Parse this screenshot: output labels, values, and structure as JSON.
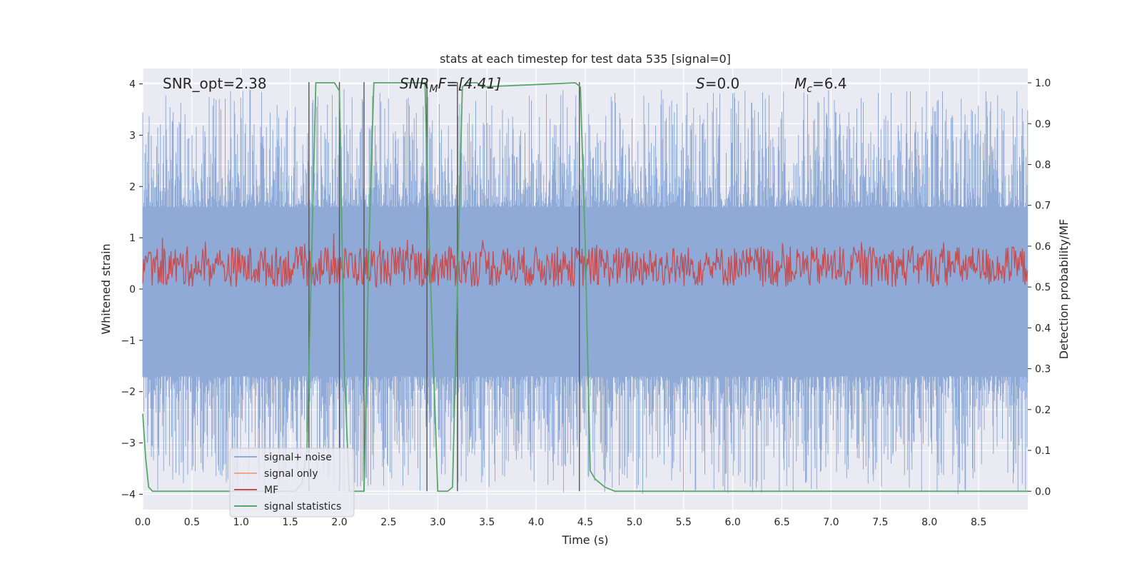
{
  "chart_data": {
    "type": "line",
    "title": "stats at each timestep for test data 535 [signal=0]",
    "xlabel": "Time (s)",
    "ylabel_left": "Whitened strain",
    "ylabel_right": "Detection probability/MF",
    "xlim": [
      0.0,
      9.0
    ],
    "ylim_left": [
      -4.3,
      4.3
    ],
    "ylim_right": [
      -0.045,
      1.035
    ],
    "x_ticks": [
      "0.0",
      "0.5",
      "1.0",
      "1.5",
      "2.0",
      "2.5",
      "3.0",
      "3.5",
      "4.0",
      "4.5",
      "5.0",
      "5.5",
      "6.0",
      "6.5",
      "7.0",
      "7.5",
      "8.0",
      "8.5"
    ],
    "y_ticks_left": [
      "−4",
      "−3",
      "−2",
      "−1",
      "0",
      "1",
      "2",
      "3",
      "4"
    ],
    "y_ticks_right": [
      "0.0",
      "0.1",
      "0.2",
      "0.3",
      "0.4",
      "0.5",
      "0.6",
      "0.7",
      "0.8",
      "0.9",
      "1.0"
    ],
    "grid": true,
    "legend_position": "lower-left",
    "annotations": {
      "snr_opt": "SNR_opt=2.38",
      "snr_mf_base": "SNR",
      "snr_mf_sub": "M",
      "snr_mf_rest": "F=[4.41]",
      "s_italic": "S",
      "s_rest": "=0.0",
      "mc_italic": "M",
      "mc_sub": "c",
      "mc_rest": "=6.4"
    },
    "vertical_lines_x": [
      1.69,
      2.0,
      2.25,
      2.89,
      3.2,
      4.44
    ],
    "series": [
      {
        "name": "signal+ noise",
        "color": "#8faad6",
        "axis": "left",
        "band_min": -1.7,
        "band_max": 1.6,
        "peak_max": 3.9,
        "peak_min": -4.0
      },
      {
        "name": "signal only",
        "color": "#f0a889",
        "axis": "left",
        "values_constant": 0.0
      },
      {
        "name": "MF",
        "color": "#c44e52",
        "axis": "right",
        "baseline": 0.55,
        "range": [
          0.5,
          0.62
        ]
      },
      {
        "name": "signal statistics",
        "color": "#55a868",
        "axis": "right",
        "x": [
          0.0,
          0.03,
          0.06,
          0.1,
          0.15,
          1.55,
          1.62,
          1.67,
          1.72,
          1.76,
          1.8,
          1.95,
          2.0,
          2.05,
          2.1,
          2.15,
          2.25,
          2.3,
          2.35,
          2.87,
          2.9,
          3.0,
          3.1,
          3.15,
          3.2,
          3.25,
          3.3,
          3.4,
          3.45,
          4.4,
          4.45,
          4.5,
          4.55,
          4.6,
          4.65,
          4.7,
          4.8,
          9.0
        ],
        "y": [
          0.19,
          0.08,
          0.01,
          0.0,
          0.0,
          0.0,
          0.02,
          0.1,
          0.6,
          1.0,
          1.0,
          1.0,
          0.98,
          0.3,
          0.0,
          0.0,
          0.0,
          0.6,
          1.0,
          1.0,
          0.7,
          0.0,
          0.0,
          0.01,
          0.5,
          0.99,
          1.0,
          1.0,
          0.99,
          1.0,
          0.99,
          0.6,
          0.05,
          0.03,
          0.02,
          0.01,
          0.0,
          0.0
        ]
      }
    ]
  }
}
